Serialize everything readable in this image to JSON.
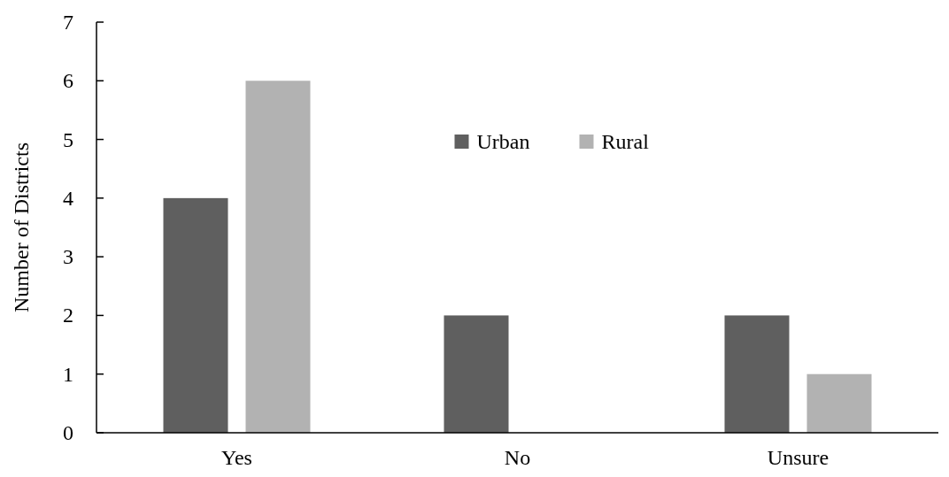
{
  "chart_data": {
    "type": "bar",
    "ylabel": "Number of Districts",
    "categories": [
      "Yes",
      "No",
      "Unsure"
    ],
    "series": [
      {
        "name": "Urban",
        "color": "#5f5f5f",
        "values": [
          4,
          2,
          2
        ]
      },
      {
        "name": "Rural",
        "color": "#b2b2b2",
        "values": [
          6,
          0,
          1
        ]
      }
    ],
    "ylim": [
      0,
      7
    ],
    "yticks": [
      0,
      1,
      2,
      3,
      4,
      5,
      6,
      7
    ],
    "legend": "top",
    "grid": false
  }
}
